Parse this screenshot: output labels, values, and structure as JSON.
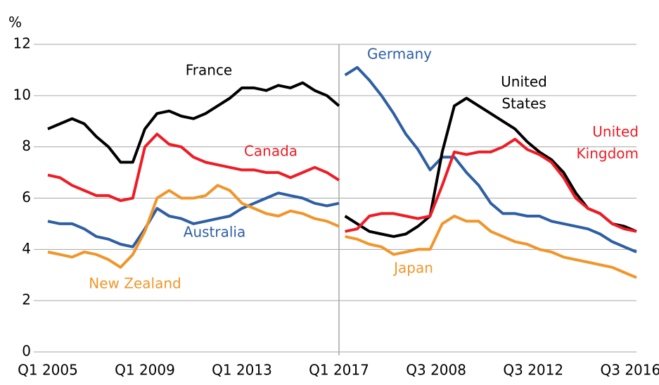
{
  "chart_data": [
    {
      "type": "line",
      "y_label": "%",
      "x": [
        2005,
        2005.5,
        2006,
        2006.5,
        2007,
        2007.5,
        2008,
        2008.5,
        2009,
        2009.5,
        2010,
        2010.5,
        2011,
        2011.5,
        2012,
        2012.5,
        2013,
        2013.5,
        2014,
        2014.5,
        2015,
        2015.5,
        2016,
        2016.5,
        2017
      ],
      "xlim": [
        2005,
        2017
      ],
      "xticks": [
        {
          "value": 2005,
          "label": "Q1 2005"
        },
        {
          "value": 2009,
          "label": "Q1 2009"
        },
        {
          "value": 2013,
          "label": "Q1 2013"
        },
        {
          "value": 2017,
          "label": "Q1 2017"
        }
      ],
      "ylim": [
        0,
        12
      ],
      "yticks": [
        0,
        2,
        4,
        6,
        8,
        10,
        12
      ],
      "grid": true,
      "series": [
        {
          "name": "France",
          "color": "#000000",
          "values": [
            8.7,
            8.9,
            9.1,
            8.9,
            8.4,
            8.0,
            7.4,
            7.4,
            8.7,
            9.3,
            9.4,
            9.2,
            9.1,
            9.3,
            9.6,
            9.9,
            10.3,
            10.3,
            10.2,
            10.4,
            10.3,
            10.5,
            10.2,
            10.0,
            9.6
          ]
        },
        {
          "name": "Canada",
          "color": "#ee1c25",
          "values": [
            6.9,
            6.8,
            6.5,
            6.3,
            6.1,
            6.1,
            5.9,
            6.0,
            8.0,
            8.5,
            8.1,
            8.0,
            7.6,
            7.4,
            7.3,
            7.2,
            7.1,
            7.1,
            7.0,
            7.0,
            6.8,
            7.0,
            7.2,
            7.0,
            6.7
          ]
        },
        {
          "name": "Australia",
          "color": "#2e5fa3",
          "values": [
            5.1,
            5.0,
            5.0,
            4.8,
            4.5,
            4.4,
            4.2,
            4.1,
            4.8,
            5.6,
            5.3,
            5.2,
            5.0,
            5.1,
            5.2,
            5.3,
            5.6,
            5.8,
            6.0,
            6.2,
            6.1,
            6.0,
            5.8,
            5.7,
            5.8
          ]
        },
        {
          "name": "New Zealand",
          "color": "#f0962a",
          "values": [
            3.9,
            3.8,
            3.7,
            3.9,
            3.8,
            3.6,
            3.3,
            3.8,
            4.7,
            6.0,
            6.3,
            6.0,
            6.0,
            6.1,
            6.5,
            6.3,
            5.8,
            5.6,
            5.4,
            5.3,
            5.5,
            5.4,
            5.2,
            5.1,
            4.9
          ]
        }
      ]
    },
    {
      "type": "line",
      "x": [
        2004.75,
        2005.25,
        2005.75,
        2006.25,
        2006.75,
        2007.25,
        2007.75,
        2008.25,
        2008.75,
        2009.25,
        2009.75,
        2010.25,
        2010.75,
        2011.25,
        2011.75,
        2012.25,
        2012.75,
        2013.25,
        2013.75,
        2014.25,
        2014.75,
        2015.25,
        2015.75,
        2016.25,
        2016.75
      ],
      "xlim": [
        2004.5,
        2016.75
      ],
      "xticks": [
        {
          "value": 2008.5,
          "label": "Q3 2008"
        },
        {
          "value": 2012.5,
          "label": "Q3 2012"
        },
        {
          "value": 2016.5,
          "label": "Q3 2016"
        }
      ],
      "ylim": [
        0,
        12
      ],
      "series": [
        {
          "name": "Germany",
          "color": "#2e5fa3",
          "values": [
            10.8,
            11.1,
            10.6,
            10.0,
            9.3,
            8.5,
            7.9,
            7.1,
            7.6,
            7.6,
            7.0,
            6.5,
            5.8,
            5.4,
            5.4,
            5.3,
            5.3,
            5.1,
            5.0,
            4.9,
            4.8,
            4.6,
            4.3,
            4.1,
            3.9
          ]
        },
        {
          "name": "United States",
          "color": "#000000",
          "values": [
            5.3,
            5.0,
            4.7,
            4.6,
            4.5,
            4.6,
            4.9,
            5.3,
            7.8,
            9.6,
            9.9,
            9.6,
            9.3,
            9.0,
            8.7,
            8.2,
            7.8,
            7.5,
            7.0,
            6.2,
            5.6,
            5.4,
            5.0,
            4.9,
            4.7
          ]
        },
        {
          "name": "United Kingdom",
          "color": "#ee1c25",
          "values": [
            4.7,
            4.8,
            5.3,
            5.4,
            5.4,
            5.3,
            5.2,
            5.3,
            6.5,
            7.8,
            7.7,
            7.8,
            7.8,
            8.0,
            8.3,
            7.9,
            7.7,
            7.4,
            6.8,
            6.0,
            5.6,
            5.4,
            5.0,
            4.8,
            4.7
          ]
        },
        {
          "name": "Japan",
          "color": "#f0962a",
          "values": [
            4.5,
            4.4,
            4.2,
            4.1,
            3.8,
            3.9,
            4.0,
            4.0,
            5.0,
            5.3,
            5.1,
            5.1,
            4.7,
            4.5,
            4.3,
            4.2,
            4.0,
            3.9,
            3.7,
            3.6,
            3.5,
            3.4,
            3.3,
            3.1,
            2.9
          ]
        }
      ]
    }
  ]
}
